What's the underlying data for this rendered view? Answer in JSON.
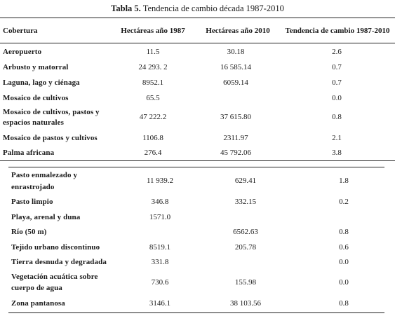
{
  "table": {
    "title_bold": "Tabla 5.",
    "title_rest": " Tendencia de cambio década 1987-2010",
    "headers": [
      "Cobertura",
      "Hectáreas año 1987",
      "Hectáreas año 2010",
      "Tendencia de cambio 1987-2010"
    ],
    "rows_part1": [
      {
        "label": "Aeropuerto",
        "h1987": "11.5",
        "h2010": "30.18",
        "trend": "2.6"
      },
      {
        "label": "Arbusto y matorral",
        "h1987": "24 293. 2",
        "h2010": "16 585.14",
        "trend": "0.7"
      },
      {
        "label": "Laguna, lago y ciénaga",
        "h1987": "8952.1",
        "h2010": "6059.14",
        "trend": "0.7"
      },
      {
        "label": "Mosaico de cultivos",
        "h1987": "65.5",
        "h2010": "",
        "trend": "0.0"
      },
      {
        "label_line1": "Mosaico de cultivos, pastos y",
        "label_line2": "espacios naturales",
        "h1987": "47 222.2",
        "h2010": "37 615.80",
        "trend": "0.8"
      },
      {
        "label": "Mosaico de pastos y cultivos",
        "h1987": "1106.8",
        "h2010": "2311.97",
        "trend": "2.1"
      },
      {
        "label": "Palma africana",
        "h1987": "276.4",
        "h2010": "45 792.06",
        "trend": "3.8"
      }
    ],
    "rows_part2": [
      {
        "label_line1": "Pasto enmalezado y",
        "label_line2": "enrastrojado",
        "h1987": "11 939.2",
        "h2010": "629.41",
        "trend": "1.8"
      },
      {
        "label": "Pasto limpio",
        "h1987": "346.8",
        "h2010": "332.15",
        "trend": "0.2"
      },
      {
        "label": "Playa, arenal y duna",
        "h1987": "1571.0",
        "h2010": "",
        "trend": ""
      },
      {
        "label": "Río (50 m)",
        "h1987": "",
        "h2010": "6562.63",
        "trend": "0.8"
      },
      {
        "label": "Tejido urbano discontinuo",
        "h1987": "8519.1",
        "h2010": "205.78",
        "trend": "0.6"
      },
      {
        "label": "Tierra desnuda y degradada",
        "h1987": "331.8",
        "h2010": "",
        "trend": "0.0"
      },
      {
        "label_line1": "Vegetación acuática sobre",
        "label_line2": "cuerpo de agua",
        "h1987": "730.6",
        "h2010": "155.98",
        "trend": "0.0"
      },
      {
        "label": "Zona pantanosa",
        "h1987": "3146.1",
        "h2010": "38 103.56",
        "trend": "0.8"
      }
    ]
  }
}
